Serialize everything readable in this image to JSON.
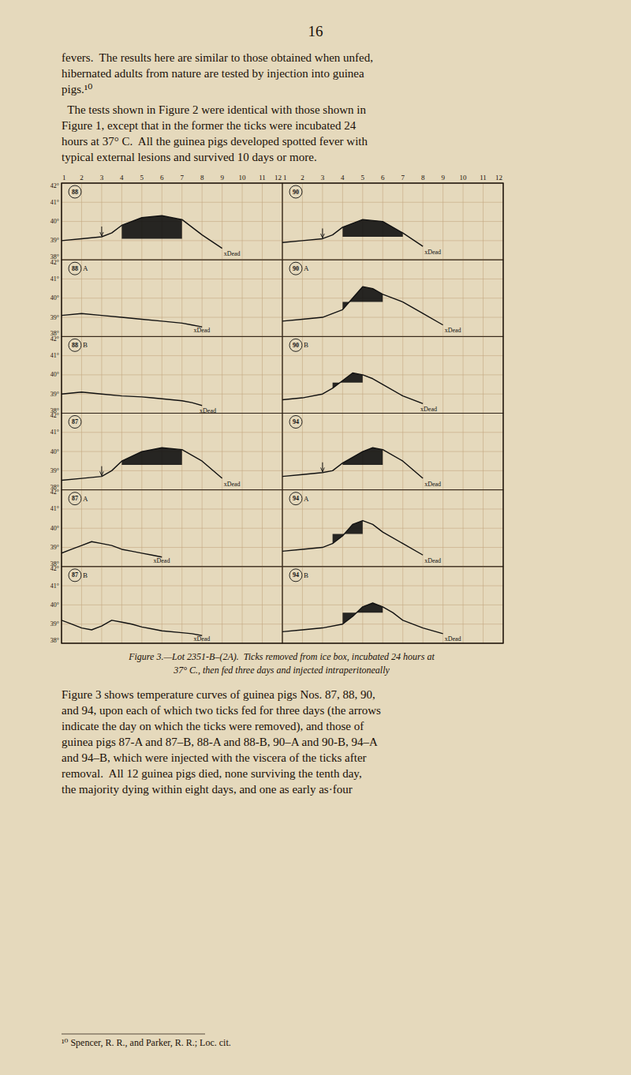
{
  "page_number": "16",
  "text_before": [
    [
      "fevers.  The results here are similar to those obtained when unfed,",
      "hibernated adults from nature are tested by injection into guinea",
      "pigs.¹⁰"
    ],
    [
      "  The tests shown in Figure 2 were identical with those shown in",
      "Figure 1, except that in the former the ticks were incubated 24",
      "hours at 37° C.  All the guinea pigs developed spotted fever with",
      "typical external lesions and survived 10 days or more."
    ]
  ],
  "chart_data": [
    {
      "type": "line",
      "title": "88",
      "color": "#111111",
      "x": [
        1,
        2,
        3,
        3.5,
        4,
        5,
        6,
        7,
        8,
        9
      ],
      "values": [
        39.0,
        39.1,
        39.2,
        39.4,
        39.8,
        40.2,
        40.3,
        40.1,
        39.3,
        38.6
      ],
      "fill": {
        "x": [
          4,
          7
        ],
        "base": 39.1
      },
      "arrows": [
        {
          "x": 3.0
        }
      ],
      "annotations": [
        {
          "text": "xDead",
          "x": 9.0
        }
      ],
      "xlim": [
        1,
        12
      ],
      "ylim": [
        38,
        42
      ],
      "xticks": [
        1,
        2,
        3,
        4,
        5,
        6,
        7,
        8,
        9,
        10,
        11,
        12
      ],
      "yticks": [
        {
          "value": 38,
          "label": "38°"
        },
        {
          "value": 39,
          "label": "39°"
        },
        {
          "value": 40,
          "label": "40°"
        },
        {
          "value": 41,
          "label": "41°"
        },
        {
          "value": 42,
          "label": "42°"
        }
      ],
      "grid": true
    },
    {
      "type": "line",
      "title": "90",
      "color": "#111111",
      "x": [
        1,
        2,
        3,
        3.5,
        4,
        5,
        6,
        7,
        8
      ],
      "values": [
        38.9,
        39.0,
        39.1,
        39.3,
        39.7,
        40.1,
        40.0,
        39.4,
        38.7
      ],
      "fill": {
        "x": [
          4,
          7
        ],
        "base": 39.2
      },
      "arrows": [
        {
          "x": 3.0
        }
      ],
      "annotations": [
        {
          "text": "xDead",
          "x": 8.0
        }
      ],
      "xlim": [
        1,
        12
      ],
      "ylim": [
        38,
        42
      ],
      "xticks": [
        1,
        2,
        3,
        4,
        5,
        6,
        7,
        8,
        9,
        10,
        11,
        12
      ],
      "yticks": [
        {
          "value": 38,
          "label": "38°"
        },
        {
          "value": 39,
          "label": "39°"
        },
        {
          "value": 40,
          "label": "40°"
        },
        {
          "value": 41,
          "label": "41°"
        },
        {
          "value": 42,
          "label": "42°"
        }
      ],
      "grid": true,
      "tick_labels": "x"
    },
    {
      "type": "line",
      "title": "88",
      "subtitle": "A",
      "color": "#111111",
      "x": [
        1,
        2,
        3,
        4,
        5,
        6,
        7,
        7.5,
        8
      ],
      "values": [
        39.1,
        39.2,
        39.1,
        39.0,
        38.9,
        38.8,
        38.7,
        38.6,
        38.5
      ],
      "annotations": [
        {
          "text": "xDead",
          "x": 7.5
        }
      ],
      "xlim": [
        1,
        12
      ],
      "ylim": [
        38,
        42
      ],
      "xticks": [
        1,
        2,
        3,
        4,
        5,
        6,
        7,
        8,
        9,
        10,
        11,
        12
      ],
      "yticks": [
        {
          "value": 38,
          "label": "38°"
        },
        {
          "value": 39,
          "label": "39°"
        },
        {
          "value": 40,
          "label": "40°"
        },
        {
          "value": 41,
          "label": "41°"
        },
        {
          "value": 42,
          "label": "42°"
        }
      ],
      "grid": true,
      "tick_labels": "y"
    },
    {
      "type": "line",
      "title": "90",
      "subtitle": "A",
      "color": "#111111",
      "x": [
        1,
        2,
        3,
        4,
        4.5,
        5,
        5.5,
        6,
        7,
        8,
        9
      ],
      "values": [
        38.8,
        38.9,
        39.0,
        39.4,
        40.0,
        40.6,
        40.5,
        40.2,
        39.8,
        39.2,
        38.6
      ],
      "fill": {
        "x": [
          4,
          6
        ],
        "base": 39.8
      },
      "annotations": [
        {
          "text": "xDead",
          "x": 9.0
        }
      ],
      "xlim": [
        1,
        12
      ],
      "ylim": [
        38,
        42
      ],
      "xticks": [
        1,
        2,
        3,
        4,
        5,
        6,
        7,
        8,
        9,
        10,
        11,
        12
      ],
      "yticks": [
        {
          "value": 38,
          "label": "38°"
        },
        {
          "value": 39,
          "label": "39°"
        },
        {
          "value": 40,
          "label": "40°"
        },
        {
          "value": 41,
          "label": "41°"
        },
        {
          "value": 42,
          "label": "42°"
        }
      ],
      "grid": true,
      "tick_labels": false
    },
    {
      "type": "line",
      "title": "88",
      "subtitle": "B",
      "color": "#111111",
      "x": [
        1,
        2,
        3,
        4,
        5,
        5.5,
        6,
        7,
        7.5,
        8
      ],
      "values": [
        39.0,
        39.1,
        39.0,
        38.9,
        38.85,
        38.8,
        38.75,
        38.65,
        38.55,
        38.4
      ],
      "annotations": [
        {
          "text": "xDead",
          "x": 7.8
        }
      ],
      "xlim": [
        1,
        12
      ],
      "ylim": [
        38,
        42
      ],
      "xticks": [
        1,
        2,
        3,
        4,
        5,
        6,
        7,
        8,
        9,
        10,
        11,
        12
      ],
      "yticks": [
        {
          "value": 38,
          "label": "38°"
        },
        {
          "value": 39,
          "label": "39°"
        },
        {
          "value": 40,
          "label": "40°"
        },
        {
          "value": 41,
          "label": "41°"
        },
        {
          "value": 42,
          "label": "42°"
        }
      ],
      "grid": true,
      "tick_labels": "y"
    },
    {
      "type": "line",
      "title": "90",
      "subtitle": "B",
      "color": "#111111",
      "x": [
        1,
        2,
        3,
        3.5,
        4,
        4.5,
        5,
        5.5,
        6,
        7,
        8
      ],
      "values": [
        38.7,
        38.8,
        39.0,
        39.3,
        39.7,
        40.1,
        40.0,
        39.8,
        39.5,
        38.9,
        38.5
      ],
      "fill": {
        "x": [
          3.5,
          5
        ],
        "base": 39.6
      },
      "annotations": [
        {
          "text": "xDead",
          "x": 7.8
        }
      ],
      "xlim": [
        1,
        12
      ],
      "ylim": [
        38,
        42
      ],
      "xticks": [
        1,
        2,
        3,
        4,
        5,
        6,
        7,
        8,
        9,
        10,
        11,
        12
      ],
      "yticks": [
        {
          "value": 38,
          "label": "38°"
        },
        {
          "value": 39,
          "label": "39°"
        },
        {
          "value": 40,
          "label": "40°"
        },
        {
          "value": 41,
          "label": "41°"
        },
        {
          "value": 42,
          "label": "42°"
        }
      ],
      "grid": true,
      "tick_labels": false
    },
    {
      "type": "line",
      "title": "87",
      "color": "#111111",
      "x": [
        1,
        2,
        3,
        3.5,
        4,
        5,
        6,
        7,
        8,
        9
      ],
      "values": [
        38.5,
        38.6,
        38.7,
        39.0,
        39.5,
        40.0,
        40.2,
        40.1,
        39.5,
        38.6
      ],
      "fill": {
        "x": [
          4,
          7
        ],
        "base": 39.3
      },
      "arrows": [
        {
          "x": 3.0
        }
      ],
      "annotations": [
        {
          "text": "xDead",
          "x": 9.0
        }
      ],
      "xlim": [
        1,
        12
      ],
      "ylim": [
        38,
        42
      ],
      "xticks": [
        1,
        2,
        3,
        4,
        5,
        6,
        7,
        8,
        9,
        10,
        11,
        12
      ],
      "yticks": [
        {
          "value": 38,
          "label": "38°"
        },
        {
          "value": 39,
          "label": "39°"
        },
        {
          "value": 40,
          "label": "40°"
        },
        {
          "value": 41,
          "label": "41°"
        },
        {
          "value": 42,
          "label": "42°"
        }
      ],
      "grid": true,
      "tick_labels": "y"
    },
    {
      "type": "line",
      "title": "94",
      "color": "#111111",
      "x": [
        1,
        2,
        3,
        3.5,
        4,
        5,
        5.5,
        6,
        7,
        8
      ],
      "values": [
        38.7,
        38.8,
        38.9,
        39.0,
        39.4,
        40.0,
        40.2,
        40.1,
        39.5,
        38.6
      ],
      "fill": {
        "x": [
          4,
          6
        ],
        "base": 39.3
      },
      "arrows": [
        {
          "x": 3.0
        }
      ],
      "annotations": [
        {
          "text": "xDead",
          "x": 8.0
        }
      ],
      "xlim": [
        1,
        12
      ],
      "ylim": [
        38,
        42
      ],
      "xticks": [
        1,
        2,
        3,
        4,
        5,
        6,
        7,
        8,
        9,
        10,
        11,
        12
      ],
      "yticks": [
        {
          "value": 38,
          "label": "38°"
        },
        {
          "value": 39,
          "label": "39°"
        },
        {
          "value": 40,
          "label": "40°"
        },
        {
          "value": 41,
          "label": "41°"
        },
        {
          "value": 42,
          "label": "42°"
        }
      ],
      "grid": true,
      "tick_labels": false
    },
    {
      "type": "line",
      "title": "87",
      "subtitle": "A",
      "color": "#111111",
      "x": [
        1,
        1.5,
        2,
        2.5,
        3,
        3.5,
        4,
        4.5,
        5,
        5.5,
        6
      ],
      "values": [
        38.7,
        38.9,
        39.1,
        39.3,
        39.2,
        39.1,
        38.9,
        38.8,
        38.7,
        38.6,
        38.5
      ],
      "annotations": [
        {
          "text": "xDead",
          "x": 5.5
        }
      ],
      "xlim": [
        1,
        12
      ],
      "ylim": [
        38,
        42
      ],
      "xticks": [
        1,
        2,
        3,
        4,
        5,
        6,
        7,
        8,
        9,
        10,
        11,
        12
      ],
      "yticks": [
        {
          "value": 38,
          "label": "38°"
        },
        {
          "value": 39,
          "label": "39°"
        },
        {
          "value": 40,
          "label": "40°"
        },
        {
          "value": 41,
          "label": "41°"
        },
        {
          "value": 42,
          "label": "42°"
        }
      ],
      "grid": true,
      "tick_labels": "y"
    },
    {
      "type": "line",
      "title": "94",
      "subtitle": "A",
      "color": "#111111",
      "x": [
        1,
        2,
        3,
        3.5,
        4,
        4.5,
        5,
        5.5,
        6,
        7,
        8
      ],
      "values": [
        38.8,
        38.9,
        39.0,
        39.2,
        39.6,
        40.2,
        40.4,
        40.2,
        39.8,
        39.2,
        38.6
      ],
      "fill": {
        "x": [
          3.5,
          5
        ],
        "base": 39.7
      },
      "annotations": [
        {
          "text": "xDead",
          "x": 8.0
        }
      ],
      "xlim": [
        1,
        12
      ],
      "ylim": [
        38,
        42
      ],
      "xticks": [
        1,
        2,
        3,
        4,
        5,
        6,
        7,
        8,
        9,
        10,
        11,
        12
      ],
      "yticks": [
        {
          "value": 38,
          "label": "38°"
        },
        {
          "value": 39,
          "label": "39°"
        },
        {
          "value": 40,
          "label": "40°"
        },
        {
          "value": 41,
          "label": "41°"
        },
        {
          "value": 42,
          "label": "42°"
        }
      ],
      "grid": true,
      "tick_labels": false
    },
    {
      "type": "line",
      "title": "87",
      "subtitle": "B",
      "color": "#111111",
      "x": [
        1,
        1.5,
        2,
        2.5,
        3,
        3.5,
        4,
        4.5,
        5,
        5.5,
        6,
        7,
        7.5,
        8
      ],
      "values": [
        39.2,
        39.0,
        38.8,
        38.7,
        38.9,
        39.2,
        39.1,
        39.0,
        38.85,
        38.75,
        38.65,
        38.55,
        38.5,
        38.4
      ],
      "annotations": [
        {
          "text": "xDead",
          "x": 7.5
        }
      ],
      "xlim": [
        1,
        12
      ],
      "ylim": [
        38,
        42
      ],
      "xticks": [
        1,
        2,
        3,
        4,
        5,
        6,
        7,
        8,
        9,
        10,
        11,
        12
      ],
      "yticks": [
        {
          "value": 38,
          "label": "38°"
        },
        {
          "value": 39,
          "label": "39°"
        },
        {
          "value": 40,
          "label": "40°"
        },
        {
          "value": 41,
          "label": "41°"
        },
        {
          "value": 42,
          "label": "42°"
        }
      ],
      "grid": true,
      "tick_labels": "y"
    },
    {
      "type": "line",
      "title": "94",
      "subtitle": "B",
      "color": "#111111",
      "x": [
        1,
        2,
        3,
        4,
        4.5,
        5,
        5.5,
        6,
        6.5,
        7,
        8,
        9
      ],
      "values": [
        38.6,
        38.7,
        38.8,
        39.0,
        39.4,
        39.9,
        40.1,
        39.9,
        39.6,
        39.2,
        38.8,
        38.5
      ],
      "fill": {
        "x": [
          4,
          6
        ],
        "base": 39.6
      },
      "annotations": [
        {
          "text": "xDead",
          "x": 9.0
        }
      ],
      "xlim": [
        1,
        12
      ],
      "ylim": [
        38,
        42
      ],
      "xticks": [
        1,
        2,
        3,
        4,
        5,
        6,
        7,
        8,
        9,
        10,
        11,
        12
      ],
      "yticks": [
        {
          "value": 38,
          "label": "38°"
        },
        {
          "value": 39,
          "label": "39°"
        },
        {
          "value": 40,
          "label": "40°"
        },
        {
          "value": 41,
          "label": "41°"
        },
        {
          "value": 42,
          "label": "42°"
        }
      ],
      "grid": true,
      "tick_labels": false
    }
  ],
  "caption": [
    "Figure 3.—Lot 2351-B–(2A).  Ticks removed from ice box, incubated 24 hours at",
    "37° C., then fed three days and injected intraperitoneally"
  ],
  "text_after": [
    [
      "Figure 3 shows temperature curves of guinea pigs Nos. 87, 88, 90,",
      "and 94, upon each of which two ticks fed for three days (the arrows",
      "indicate the day on which the ticks were removed), and those of",
      "guinea pigs 87-A and 87–B, 88-A and 88-B, 90–A and 90-B, 94–A",
      "and 94–B, which were injected with the viscera of the ticks after",
      "removal.  All 12 guinea pigs died, none surviving the tenth day,",
      "the majority dying within eight days, and one as early as·four"
    ]
  ],
  "footnote": "¹⁰ Spencer, R. R., and Parker, R. R.; Loc. cit."
}
